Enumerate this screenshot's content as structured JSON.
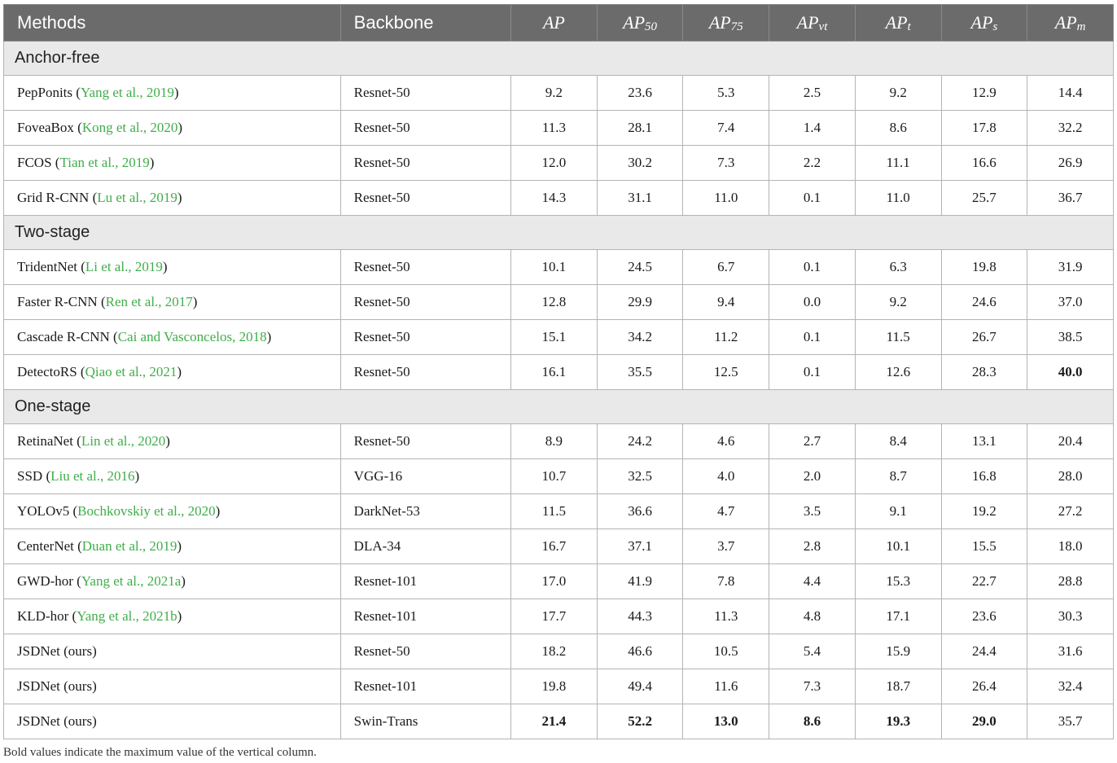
{
  "columns": {
    "methods": "Methods",
    "backbone": "Backbone",
    "metrics": [
      {
        "base": "AP",
        "sub": ""
      },
      {
        "base": "AP",
        "sub": "50"
      },
      {
        "base": "AP",
        "sub": "75"
      },
      {
        "base": "AP",
        "sub": "vt"
      },
      {
        "base": "AP",
        "sub": "t"
      },
      {
        "base": "AP",
        "sub": "s"
      },
      {
        "base": "AP",
        "sub": "m"
      }
    ]
  },
  "groups": [
    {
      "name": "Anchor-free",
      "rows": [
        {
          "method": "PepPonits",
          "cite": "Yang et al., 2019",
          "backbone": "Resnet-50",
          "values": [
            "9.2",
            "23.6",
            "5.3",
            "2.5",
            "9.2",
            "12.9",
            "14.4"
          ],
          "bold": []
        },
        {
          "method": "FoveaBox",
          "cite": "Kong et al., 2020",
          "backbone": "Resnet-50",
          "values": [
            "11.3",
            "28.1",
            "7.4",
            "1.4",
            "8.6",
            "17.8",
            "32.2"
          ],
          "bold": []
        },
        {
          "method": "FCOS",
          "cite": "Tian et al., 2019",
          "backbone": "Resnet-50",
          "values": [
            "12.0",
            "30.2",
            "7.3",
            "2.2",
            "11.1",
            "16.6",
            "26.9"
          ],
          "bold": []
        },
        {
          "method": "Grid R-CNN",
          "cite": "Lu et al., 2019",
          "backbone": "Resnet-50",
          "values": [
            "14.3",
            "31.1",
            "11.0",
            "0.1",
            "11.0",
            "25.7",
            "36.7"
          ],
          "bold": []
        }
      ]
    },
    {
      "name": "Two-stage",
      "rows": [
        {
          "method": "TridentNet",
          "cite": "Li et al., 2019",
          "backbone": "Resnet-50",
          "values": [
            "10.1",
            "24.5",
            "6.7",
            "0.1",
            "6.3",
            "19.8",
            "31.9"
          ],
          "bold": []
        },
        {
          "method": "Faster R-CNN",
          "cite": "Ren et al., 2017",
          "backbone": "Resnet-50",
          "values": [
            "12.8",
            "29.9",
            "9.4",
            "0.0",
            "9.2",
            "24.6",
            "37.0"
          ],
          "bold": []
        },
        {
          "method": "Cascade R-CNN",
          "cite": "Cai and Vasconcelos, 2018",
          "backbone": "Resnet-50",
          "values": [
            "15.1",
            "34.2",
            "11.2",
            "0.1",
            "11.5",
            "26.7",
            "38.5"
          ],
          "bold": []
        },
        {
          "method": "DetectoRS",
          "cite": "Qiao et al., 2021",
          "backbone": "Resnet-50",
          "values": [
            "16.1",
            "35.5",
            "12.5",
            "0.1",
            "12.6",
            "28.3",
            "40.0"
          ],
          "bold": [
            6
          ]
        }
      ]
    },
    {
      "name": "One-stage",
      "rows": [
        {
          "method": "RetinaNet",
          "cite": "Lin et al., 2020",
          "backbone": "Resnet-50",
          "values": [
            "8.9",
            "24.2",
            "4.6",
            "2.7",
            "8.4",
            "13.1",
            "20.4"
          ],
          "bold": []
        },
        {
          "method": "SSD",
          "cite": "Liu et al., 2016",
          "backbone": "VGG-16",
          "values": [
            "10.7",
            "32.5",
            "4.0",
            "2.0",
            "8.7",
            "16.8",
            "28.0"
          ],
          "bold": []
        },
        {
          "method": "YOLOv5",
          "cite": "Bochkovskiy et al., 2020",
          "backbone": "DarkNet-53",
          "values": [
            "11.5",
            "36.6",
            "4.7",
            "3.5",
            "9.1",
            "19.2",
            "27.2"
          ],
          "bold": []
        },
        {
          "method": "CenterNet",
          "cite": "Duan et al., 2019",
          "backbone": "DLA-34",
          "values": [
            "16.7",
            "37.1",
            "3.7",
            "2.8",
            "10.1",
            "15.5",
            "18.0"
          ],
          "bold": []
        },
        {
          "method": "GWD-hor",
          "cite": "Yang et al., 2021a",
          "backbone": "Resnet-101",
          "values": [
            "17.0",
            "41.9",
            "7.8",
            "4.4",
            "15.3",
            "22.7",
            "28.8"
          ],
          "bold": []
        },
        {
          "method": "KLD-hor",
          "cite": "Yang et al., 2021b",
          "backbone": "Resnet-101",
          "values": [
            "17.7",
            "44.3",
            "11.3",
            "4.8",
            "17.1",
            "23.6",
            "30.3"
          ],
          "bold": []
        },
        {
          "method": "JSDNet (ours)",
          "cite": "",
          "backbone": "Resnet-50",
          "values": [
            "18.2",
            "46.6",
            "10.5",
            "5.4",
            "15.9",
            "24.4",
            "31.6"
          ],
          "bold": []
        },
        {
          "method": "JSDNet (ours)",
          "cite": "",
          "backbone": "Resnet-101",
          "values": [
            "19.8",
            "49.4",
            "11.6",
            "7.3",
            "18.7",
            "26.4",
            "32.4"
          ],
          "bold": []
        },
        {
          "method": "JSDNet (ours)",
          "cite": "",
          "backbone": "Swin-Trans",
          "values": [
            "21.4",
            "52.2",
            "13.0",
            "8.6",
            "19.3",
            "29.0",
            "35.7"
          ],
          "bold": [
            0,
            1,
            2,
            3,
            4,
            5
          ]
        }
      ]
    }
  ],
  "footnote": "Bold values indicate the maximum value of the vertical column."
}
